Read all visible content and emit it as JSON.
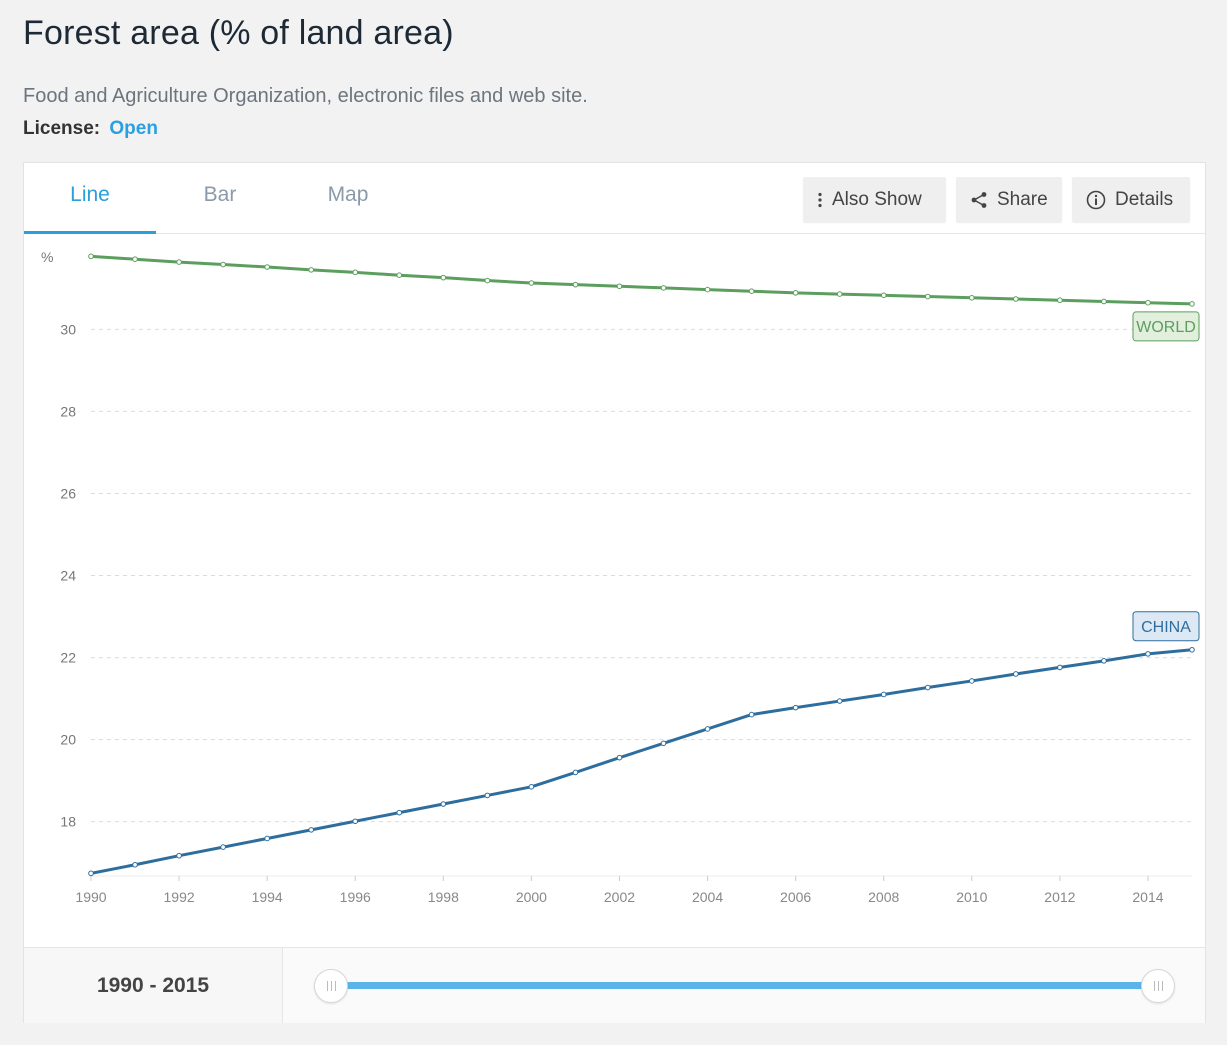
{
  "header": {
    "title": "Forest area (% of land area)",
    "source": "Food and Agriculture Organization, electronic files and web site.",
    "license_label": "License:",
    "license_value": "Open"
  },
  "tabs": [
    {
      "label": "Line",
      "active": true
    },
    {
      "label": "Bar",
      "active": false
    },
    {
      "label": "Map",
      "active": false
    }
  ],
  "toolbar": {
    "also_show": "Also Show",
    "share": "Share",
    "details": "Details"
  },
  "range": {
    "label": "1990 - 2015",
    "start": 1990,
    "end": 2015
  },
  "colors": {
    "world": "#5b9e5e",
    "china": "#2e6e9e",
    "accent": "#2a9fd8"
  },
  "chart_data": {
    "type": "line",
    "ylabel": "%",
    "xlim": [
      1990,
      2015
    ],
    "ylim": [
      16.7,
      32.3
    ],
    "yticks": [
      18,
      20,
      22,
      24,
      26,
      28,
      30
    ],
    "xticks": [
      1990,
      1992,
      1994,
      1996,
      1998,
      2000,
      2002,
      2004,
      2006,
      2008,
      2010,
      2012,
      2014
    ],
    "grid": true,
    "x": [
      1990,
      1991,
      1992,
      1993,
      1994,
      1995,
      1996,
      1997,
      1998,
      1999,
      2000,
      2001,
      2002,
      2003,
      2004,
      2005,
      2006,
      2007,
      2008,
      2009,
      2010,
      2011,
      2012,
      2013,
      2014,
      2015
    ],
    "series": [
      {
        "name": "WORLD",
        "color": "#5b9e5e",
        "values": [
          31.78,
          31.71,
          31.64,
          31.58,
          31.52,
          31.45,
          31.39,
          31.32,
          31.26,
          31.19,
          31.13,
          31.09,
          31.05,
          31.01,
          30.97,
          30.93,
          30.89,
          30.86,
          30.83,
          30.8,
          30.77,
          30.74,
          30.71,
          30.68,
          30.65,
          30.62
        ]
      },
      {
        "name": "CHINA",
        "color": "#2e6e9e",
        "values": [
          16.74,
          16.95,
          17.17,
          17.38,
          17.59,
          17.8,
          18.01,
          18.22,
          18.43,
          18.64,
          18.85,
          19.2,
          19.56,
          19.91,
          20.26,
          20.61,
          20.78,
          20.94,
          21.1,
          21.27,
          21.43,
          21.6,
          21.76,
          21.92,
          22.09,
          22.19
        ]
      }
    ]
  }
}
